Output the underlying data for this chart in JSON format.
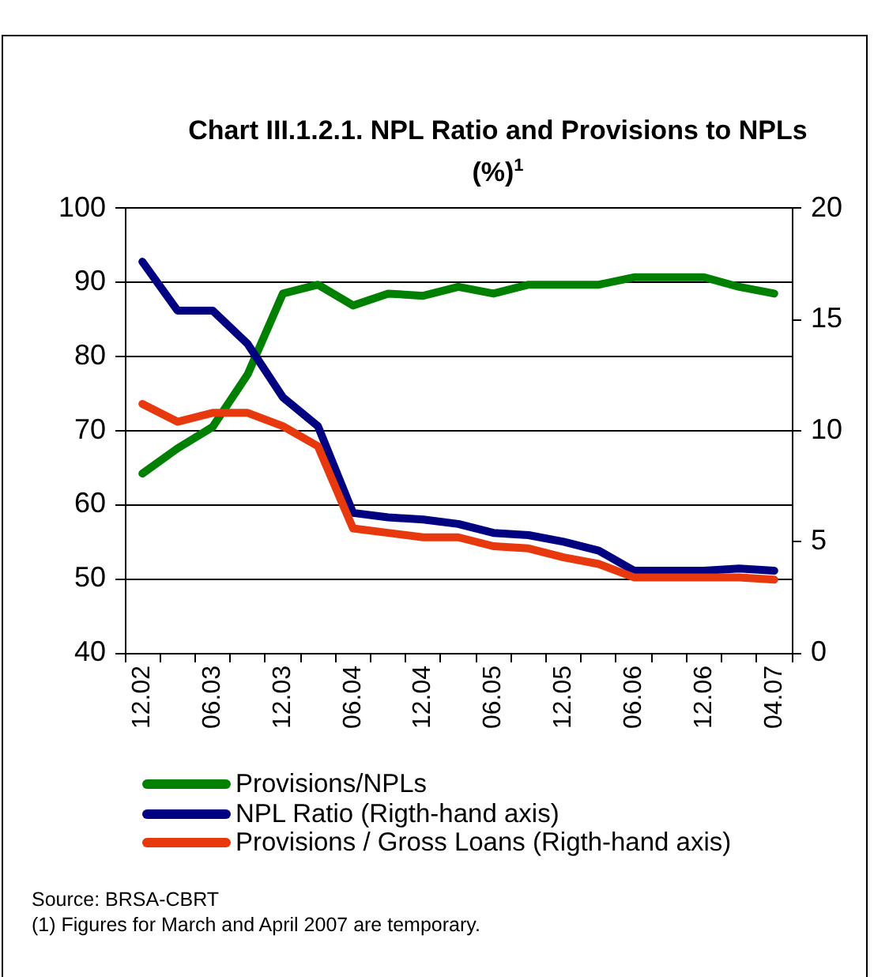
{
  "chart_data": {
    "type": "line",
    "title": "Chart III.1.2.1. NPL Ratio and Provisions to NPLs (%)$^{1}$",
    "categories": [
      "12.02",
      null,
      "06.03",
      null,
      "12.03",
      null,
      "06.04",
      null,
      "12.04",
      null,
      "06.05",
      null,
      "12.05",
      null,
      "06.06",
      null,
      "12.06",
      null,
      "04.07"
    ],
    "series": [
      {
        "name": "Provisions/NPLs",
        "color": "#008000",
        "values": [
          64.2,
          67.6,
          70.5,
          77.6,
          88.5,
          89.7,
          86.9,
          88.5,
          88.2,
          89.4,
          88.5,
          89.7,
          89.7,
          89.7,
          90.7,
          90.7,
          90.7,
          89.4,
          88.5
        ]
      },
      {
        "name": "NPL Ratio (Rigth-hand axis)",
        "color": "#000080",
        "axis": "y2",
        "values": [
          17.6,
          15.4,
          15.4,
          13.9,
          11.5,
          10.2,
          6.3,
          6.1,
          6.0,
          5.8,
          5.4,
          5.3,
          5.0,
          4.6,
          3.7,
          3.7,
          3.7,
          3.8,
          3.7
        ]
      },
      {
        "name": "Provisions / Gross Loans (Rigth-hand axis)",
        "color": "#e8380d",
        "axis": "y2",
        "values": [
          11.2,
          10.4,
          10.8,
          10.8,
          10.2,
          9.3,
          5.6,
          5.4,
          5.2,
          5.2,
          4.8,
          4.7,
          4.3,
          4.0,
          3.4,
          3.4,
          3.4,
          3.4,
          3.3
        ]
      }
    ],
    "ylim": [
      40,
      100
    ],
    "yticks": [
      40,
      50,
      60,
      70,
      80,
      90,
      100
    ],
    "y2lim": [
      0,
      20
    ],
    "y2ticks": [
      0,
      5,
      10,
      15,
      20
    ],
    "grid": "y",
    "legend": "bottom",
    "marker": "none",
    "line_style": "solid",
    "annotations": [
      "Source: BRSA-CBRT",
      "(1) Figures for March and April 2007 are temporary."
    ]
  }
}
